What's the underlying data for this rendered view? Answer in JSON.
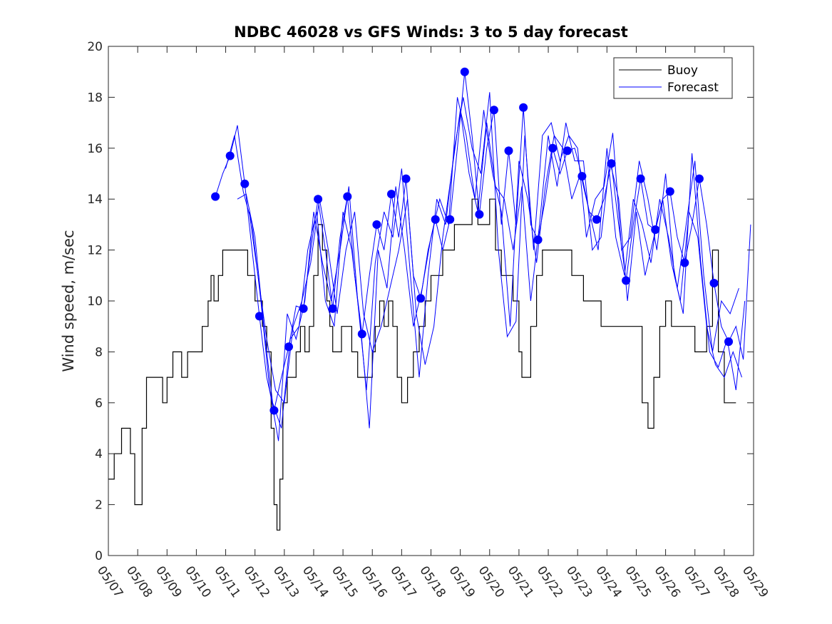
{
  "chart_data": {
    "type": "line",
    "title": "NDBC 46028 vs GFS Winds: 3 to 5 day forecast",
    "xlabel": "",
    "ylabel": "Wind speed, m/sec",
    "xlim": [
      "05/07",
      "05/29"
    ],
    "ylim": [
      0,
      20
    ],
    "x_unit": "date (MM/DD), days from 05/07 00:00",
    "x_ticks": [
      "05/07",
      "05/08",
      "05/09",
      "05/10",
      "05/11",
      "05/12",
      "05/13",
      "05/14",
      "05/15",
      "05/16",
      "05/17",
      "05/18",
      "05/19",
      "05/20",
      "05/21",
      "05/22",
      "05/23",
      "05/24",
      "05/25",
      "05/26",
      "05/27",
      "05/28",
      "05/29"
    ],
    "y_ticks": [
      0,
      2,
      4,
      6,
      8,
      10,
      12,
      14,
      16,
      18,
      20
    ],
    "grid": false,
    "legend": {
      "position": "top-right",
      "entries": [
        "Buoy",
        "Forecast"
      ]
    },
    "colors": {
      "buoy": "#000000",
      "forecast": "#0000ff",
      "markers": "#0000ff"
    },
    "buoy_series": {
      "name": "Buoy",
      "x": [
        0.0,
        0.1,
        0.2,
        0.3,
        0.45,
        0.6,
        0.75,
        0.9,
        1.0,
        1.15,
        1.3,
        1.5,
        1.7,
        1.85,
        2.0,
        2.2,
        2.3,
        2.5,
        2.7,
        2.85,
        3.0,
        3.2,
        3.4,
        3.5,
        3.6,
        3.75,
        3.9,
        4.0,
        4.2,
        4.4,
        4.6,
        4.75,
        4.9,
        5.0,
        5.1,
        5.25,
        5.4,
        5.55,
        5.65,
        5.75,
        5.85,
        5.95,
        6.1,
        6.25,
        6.4,
        6.55,
        6.7,
        6.85,
        7.0,
        7.15,
        7.3,
        7.45,
        7.55,
        7.65,
        7.8,
        7.95,
        8.1,
        8.3,
        8.5,
        8.7,
        8.9,
        9.0,
        9.1,
        9.25,
        9.4,
        9.55,
        9.7,
        9.85,
        10.0,
        10.2,
        10.4,
        10.6,
        10.8,
        11.0,
        11.2,
        11.4,
        11.6,
        11.8,
        12.0,
        12.2,
        12.4,
        12.6,
        12.8,
        13.0,
        13.2,
        13.4,
        13.6,
        13.8,
        14.0,
        14.1,
        14.25,
        14.4,
        14.6,
        14.8,
        15.0,
        15.2,
        15.4,
        15.6,
        15.8,
        16.0,
        16.2,
        16.4,
        16.6,
        16.8,
        17.0,
        17.2,
        17.4,
        17.6,
        17.8,
        18.0,
        18.2,
        18.4,
        18.6,
        18.8,
        19.0,
        19.2,
        19.4,
        19.6,
        19.8,
        20.0,
        20.2,
        20.4,
        20.6,
        20.8,
        21.0,
        21.2,
        21.4
      ],
      "values": [
        3,
        3,
        4,
        4,
        5,
        5,
        4,
        2,
        2,
        5,
        7,
        7,
        7,
        6,
        7,
        8,
        8,
        7,
        8,
        8,
        8,
        9,
        10,
        11,
        10,
        11,
        12,
        12,
        12,
        12,
        12,
        11,
        11,
        10,
        10,
        9,
        8,
        5,
        2,
        1,
        3,
        6,
        7,
        7,
        8,
        9,
        8,
        9,
        11,
        13,
        12,
        10,
        9,
        8,
        8,
        9,
        9,
        8,
        7,
        7,
        7,
        8,
        9,
        10,
        9,
        10,
        9,
        7,
        6,
        7,
        8,
        9,
        10,
        11,
        11,
        12,
        12,
        13,
        13,
        13,
        14,
        13,
        13,
        14,
        12,
        11,
        11,
        10,
        8,
        7,
        7,
        9,
        11,
        12,
        12,
        12,
        12,
        12,
        11,
        11,
        10,
        10,
        10,
        9,
        9,
        9,
        9,
        9,
        9,
        9,
        6,
        5,
        7,
        9,
        10,
        9,
        9,
        9,
        9,
        8,
        8,
        9,
        12,
        8,
        6,
        6,
        6
      ]
    },
    "forecast_points": {
      "name": "Forecast",
      "x": [
        3.65,
        4.15,
        4.65,
        5.15,
        5.65,
        6.15,
        6.65,
        7.15,
        7.65,
        8.15,
        8.65,
        9.15,
        9.65,
        10.15,
        10.65,
        11.15,
        11.65,
        12.15,
        12.65,
        13.15,
        13.65,
        14.15,
        14.65,
        15.15,
        15.65,
        16.15,
        16.65,
        17.15,
        17.65,
        18.15,
        18.65,
        19.15,
        19.65,
        20.15,
        20.65,
        21.15
      ],
      "values": [
        14.1,
        15.7,
        14.6,
        9.4,
        5.7,
        8.2,
        9.7,
        14.0,
        9.7,
        14.1,
        8.7,
        13.0,
        14.2,
        14.8,
        10.1,
        13.2,
        13.2,
        19.0,
        13.4,
        17.5,
        15.9,
        17.6,
        12.4,
        16.0,
        15.9,
        14.9,
        13.2,
        15.4,
        10.8,
        14.8,
        12.8,
        14.3,
        11.5,
        14.8,
        10.7,
        8.4
      ]
    },
    "forecast_series": [
      {
        "x": [
          3.65,
          3.9,
          4.15,
          4.4,
          4.65,
          4.9,
          5.15,
          5.4,
          5.65,
          5.9,
          6.15,
          6.4,
          6.65,
          6.9,
          7.15,
          7.4,
          7.65,
          7.9,
          8.15,
          8.4,
          8.65,
          8.9,
          9.15,
          9.4,
          9.65,
          9.9,
          10.15,
          10.4,
          10.65,
          10.9,
          11.15,
          11.4,
          11.65,
          11.9,
          12.15,
          12.4,
          12.65,
          12.9,
          13.15,
          13.4,
          13.65,
          13.9,
          14.15,
          14.4,
          14.65,
          14.9,
          15.15,
          15.4,
          15.65,
          15.9,
          16.15,
          16.4,
          16.65,
          16.9,
          17.15,
          17.4,
          17.65,
          17.9,
          18.15,
          18.4,
          18.65,
          18.9,
          19.15,
          19.4,
          19.65,
          19.9,
          20.15,
          20.4,
          20.65,
          20.9,
          21.15,
          21.4,
          21.65,
          21.9
        ],
        "values": [
          14.1,
          15.0,
          15.7,
          16.9,
          14.6,
          12.0,
          9.4,
          7.0,
          5.7,
          7.0,
          8.2,
          9.8,
          9.7,
          12.0,
          14.0,
          12.0,
          9.7,
          12.5,
          14.1,
          11.0,
          8.7,
          11.0,
          13.0,
          12.0,
          14.2,
          12.5,
          14.8,
          11.0,
          10.1,
          12.0,
          13.2,
          12.0,
          13.2,
          16.0,
          19.0,
          16.5,
          13.4,
          16.0,
          17.5,
          13.0,
          15.9,
          13.0,
          17.6,
          13.0,
          12.4,
          14.0,
          16.0,
          15.0,
          15.9,
          16.0,
          14.9,
          13.5,
          13.2,
          14.0,
          15.4,
          13.0,
          10.8,
          13.0,
          14.8,
          13.0,
          12.8,
          14.0,
          14.3,
          12.5,
          11.5,
          13.0,
          14.8,
          13.0,
          10.7,
          9.0,
          8.4,
          9.0,
          7.7,
          13.0
        ]
      },
      {
        "x": [
          4.0,
          4.3,
          4.6,
          4.9,
          5.2,
          5.5,
          5.8,
          6.1,
          6.4,
          6.7,
          7.0,
          7.3,
          7.6,
          7.9,
          8.2,
          8.5,
          8.8,
          9.1,
          9.4,
          9.7,
          10.0,
          10.3,
          10.6,
          10.9,
          11.2,
          11.5,
          11.8,
          12.1,
          12.4,
          12.7,
          13.0,
          13.3,
          13.6,
          13.9,
          14.2,
          14.5,
          14.8,
          15.1,
          15.4,
          15.7,
          16.0,
          16.3,
          16.6,
          16.9,
          17.2,
          17.5,
          17.8,
          18.1,
          18.4,
          18.7,
          19.0,
          19.3,
          19.6,
          19.9,
          20.2,
          20.5,
          20.8,
          21.1,
          21.4,
          21.7
        ],
        "values": [
          15.2,
          16.5,
          14.3,
          13.0,
          10.0,
          6.5,
          4.5,
          9.5,
          8.5,
          10.0,
          13.5,
          11.5,
          10.0,
          12.0,
          14.5,
          10.0,
          6.5,
          11.5,
          13.5,
          12.5,
          15.2,
          11.0,
          7.0,
          11.0,
          14.0,
          13.0,
          16.0,
          18.0,
          16.0,
          15.0,
          18.2,
          12.0,
          8.6,
          9.2,
          16.5,
          12.0,
          16.5,
          17.0,
          15.5,
          16.5,
          16.0,
          12.5,
          14.0,
          14.5,
          16.6,
          12.0,
          12.5,
          15.5,
          14.0,
          12.0,
          15.0,
          11.0,
          9.5,
          15.8,
          11.5,
          8.0,
          7.4,
          8.5,
          6.5,
          10.0
        ]
      },
      {
        "x": [
          4.4,
          4.7,
          5.0,
          5.3,
          5.6,
          5.9,
          6.2,
          6.5,
          6.8,
          7.1,
          7.4,
          7.7,
          8.0,
          8.3,
          8.6,
          8.9,
          9.2,
          9.5,
          9.8,
          10.1,
          10.4,
          10.7,
          11.0,
          11.3,
          11.6,
          11.9,
          12.2,
          12.5,
          12.8,
          13.1,
          13.4,
          13.7,
          14.0,
          14.3,
          14.6,
          14.9,
          15.2,
          15.5,
          15.8,
          16.1,
          16.4,
          16.7,
          17.0,
          17.3,
          17.6,
          17.9,
          18.2,
          18.5,
          18.8,
          19.1,
          19.4,
          19.7,
          20.0,
          20.3,
          20.6,
          20.9,
          21.2,
          21.5
        ],
        "values": [
          14.0,
          14.2,
          12.5,
          9.0,
          6.0,
          5.0,
          8.5,
          9.0,
          12.0,
          13.5,
          10.0,
          9.0,
          13.5,
          12.0,
          9.0,
          5.0,
          12.0,
          10.5,
          14.5,
          12.0,
          9.0,
          10.5,
          12.5,
          14.0,
          13.0,
          18.0,
          16.5,
          14.0,
          17.5,
          15.0,
          13.5,
          9.0,
          15.5,
          14.0,
          11.5,
          14.5,
          16.5,
          16.0,
          14.0,
          15.0,
          13.5,
          12.0,
          16.0,
          12.5,
          11.0,
          14.0,
          13.0,
          11.5,
          14.0,
          12.5,
          10.5,
          13.0,
          15.5,
          11.0,
          8.0,
          10.0,
          9.5,
          10.5
        ]
      },
      {
        "x": [
          4.8,
          5.1,
          5.4,
          5.7,
          6.0,
          6.3,
          6.6,
          6.9,
          7.2,
          7.5,
          7.8,
          8.1,
          8.4,
          8.7,
          9.0,
          9.3,
          9.6,
          9.9,
          10.2,
          10.5,
          10.8,
          11.1,
          11.4,
          11.7,
          12.0,
          12.3,
          12.6,
          12.9,
          13.2,
          13.5,
          13.8,
          14.1,
          14.4,
          14.7,
          15.0,
          15.3,
          15.6,
          15.9,
          16.2,
          16.5,
          16.8,
          17.1,
          17.4,
          17.7,
          18.0,
          18.3,
          18.6,
          18.9,
          19.2,
          19.5,
          19.8,
          20.1,
          20.4,
          20.7,
          21.0,
          21.3,
          21.6
        ],
        "values": [
          13.5,
          11.0,
          8.5,
          6.5,
          6.0,
          9.0,
          10.0,
          11.5,
          14.0,
          12.0,
          9.5,
          12.0,
          13.5,
          9.5,
          8.0,
          9.0,
          10.5,
          12.0,
          14.0,
          9.5,
          7.5,
          9.0,
          12.5,
          15.0,
          17.5,
          15.0,
          13.5,
          17.0,
          14.5,
          14.0,
          12.0,
          14.5,
          10.0,
          13.0,
          16.5,
          14.5,
          17.0,
          15.5,
          15.5,
          12.0,
          12.5,
          15.5,
          14.0,
          10.0,
          13.5,
          11.0,
          12.5,
          14.0,
          11.5,
          10.0,
          13.5,
          12.5,
          9.0,
          7.5,
          7.0,
          8.0,
          7.0
        ]
      }
    ]
  }
}
